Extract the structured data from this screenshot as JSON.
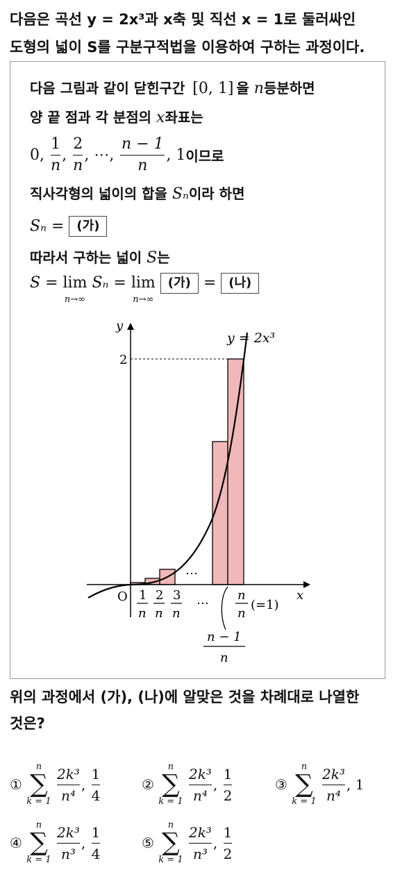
{
  "question": {
    "line1": "다음은 곡선 y = 2x³과 x축 및 직선 x = 1로 둘러싸인",
    "line2": "도형의 넓이 S를 구분구적법을 이용하여 구하는 과정이다."
  },
  "box": {
    "l1_a": "다음 그림과 같이 닫힌구간",
    "l1_interval": "[0, 1]",
    "l1_b": "을",
    "l1_n": "n",
    "l1_c": "등분하면",
    "l2_a": "양 끝 점과 각 분점의",
    "l2_x": "x",
    "l2_b": "좌표는",
    "l3_zero": "0,",
    "l3_one": "1",
    "l3_two": "2",
    "l3_n": "n",
    "l3_dots": ", ⋯,",
    "l3_nm1": "n − 1",
    "l3_end_num": "1",
    "l3_end_txt": "이므로",
    "l4_a": "직사각형의 넓이의 합을",
    "l4_sn": "Sₙ",
    "l4_b": "이라 하면",
    "l5_sn": "Sₙ =",
    "blank_ga": "(가)",
    "l6_a": "따라서 구하는 넓이",
    "l6_s": "S",
    "l6_b": "는",
    "l7_s": "S =",
    "lim": "lim",
    "lim_sub": "n→∞",
    "l7_sn": "Sₙ =",
    "equals": "=",
    "blank_na": "(나)"
  },
  "figure": {
    "y_axis": "y",
    "x_axis": "x",
    "origin": "O",
    "curve_label": "y = 2x³",
    "y_tick": "2",
    "x_tick_1": "1",
    "x_tick_2": "2",
    "x_tick_3": "3",
    "tick_den": "n",
    "dots_upper": "⋯",
    "dots_lower": "⋯",
    "last_num": "n",
    "last_den": "n",
    "last_note": "(=1)",
    "nm1_num": "n − 1",
    "nm1_den": "n",
    "bar_color": "#f0b8b8",
    "curve_color": "#000000"
  },
  "ask": {
    "line1": "위의 과정에서 (가), (나)에 알맞은 것을 차례대로 나열한",
    "line2": "것은?"
  },
  "options": [
    {
      "mark": "①",
      "top": "n",
      "bottom": "k = 1",
      "num": "2k³",
      "den": "n⁴",
      "val_num": "1",
      "val_den": "4"
    },
    {
      "mark": "②",
      "top": "n",
      "bottom": "k = 1",
      "num": "2k³",
      "den": "n⁴",
      "val_num": "1",
      "val_den": "2"
    },
    {
      "mark": "③",
      "top": "n",
      "bottom": "k = 1",
      "num": "2k³",
      "den": "n⁴",
      "val": "1"
    },
    {
      "mark": "④",
      "top": "n",
      "bottom": "k = 1",
      "num": "2k³",
      "den": "n³",
      "val_num": "1",
      "val_den": "4"
    },
    {
      "mark": "⑤",
      "top": "n",
      "bottom": "k = 1",
      "num": "2k³",
      "den": "n³",
      "val_num": "1",
      "val_den": "2"
    }
  ]
}
